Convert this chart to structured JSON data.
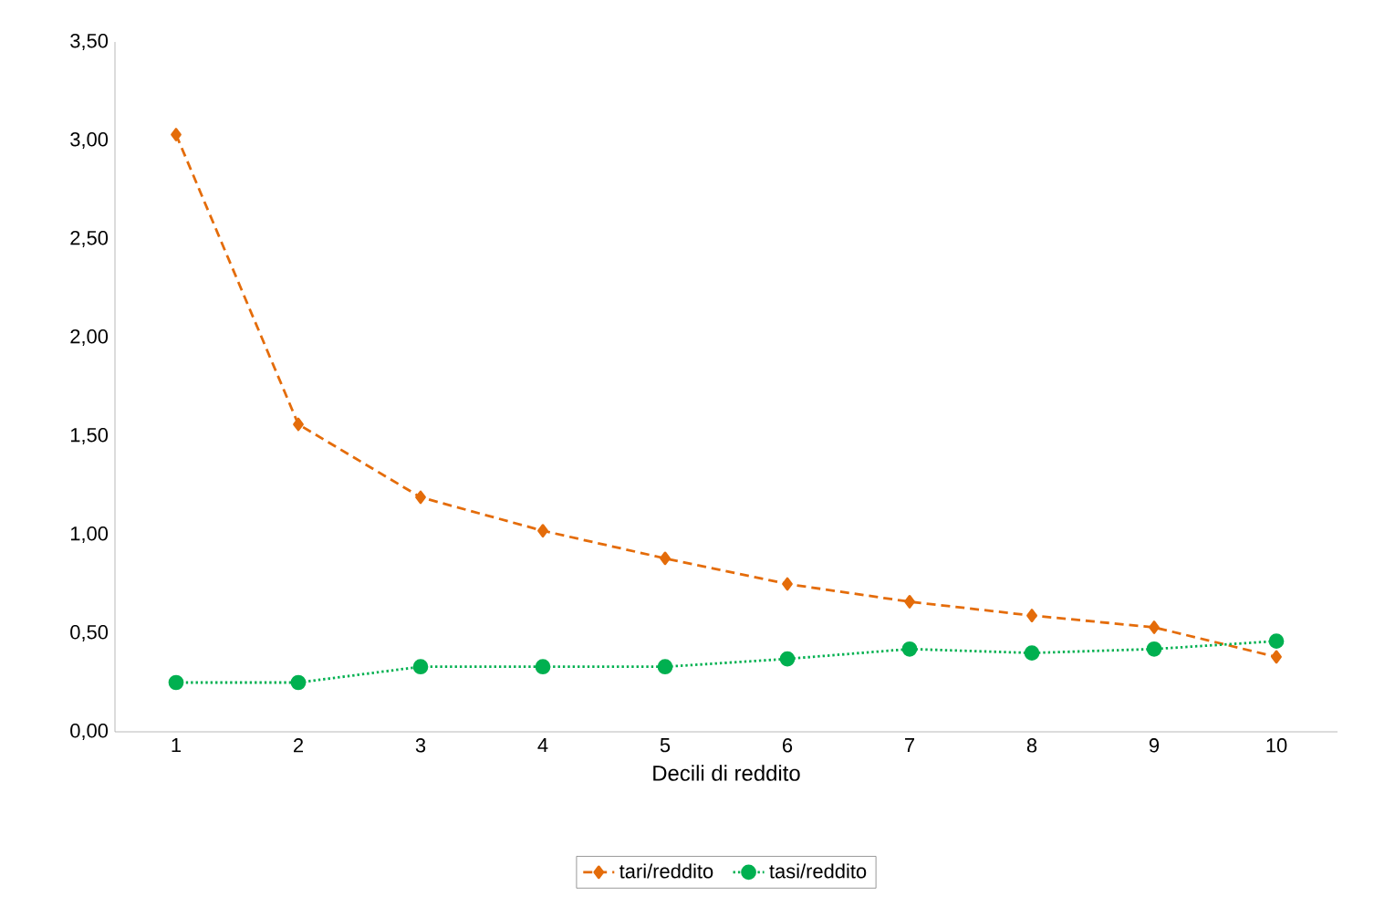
{
  "chart_data": {
    "type": "line",
    "xlabel": "Decili di reddito",
    "categories": [
      "1",
      "2",
      "3",
      "4",
      "5",
      "6",
      "7",
      "8",
      "9",
      "10"
    ],
    "series": [
      {
        "name": "tari/reddito",
        "color": "#e46c0a",
        "marker": "diamond",
        "line_style": "dashed",
        "values": [
          3.03,
          1.56,
          1.19,
          1.02,
          0.88,
          0.75,
          0.66,
          0.59,
          0.53,
          0.38
        ]
      },
      {
        "name": "tasi/reddito",
        "color": "#00b050",
        "marker": "circle",
        "line_style": "dotted",
        "values": [
          0.25,
          0.25,
          0.33,
          0.33,
          0.33,
          0.37,
          0.42,
          0.4,
          0.42,
          0.46
        ]
      }
    ],
    "ylim": [
      0,
      3.5
    ],
    "yticks": [
      {
        "value": 0,
        "label": "0,00"
      },
      {
        "value": 0.5,
        "label": "0,50"
      },
      {
        "value": 1,
        "label": "1,00"
      },
      {
        "value": 1.5,
        "label": "1,50"
      },
      {
        "value": 2,
        "label": "2,00"
      },
      {
        "value": 2.5,
        "label": "2,50"
      },
      {
        "value": 3,
        "label": "3,00"
      },
      {
        "value": 3.5,
        "label": "3,50"
      }
    ],
    "grid": false,
    "legend": "bottom"
  }
}
